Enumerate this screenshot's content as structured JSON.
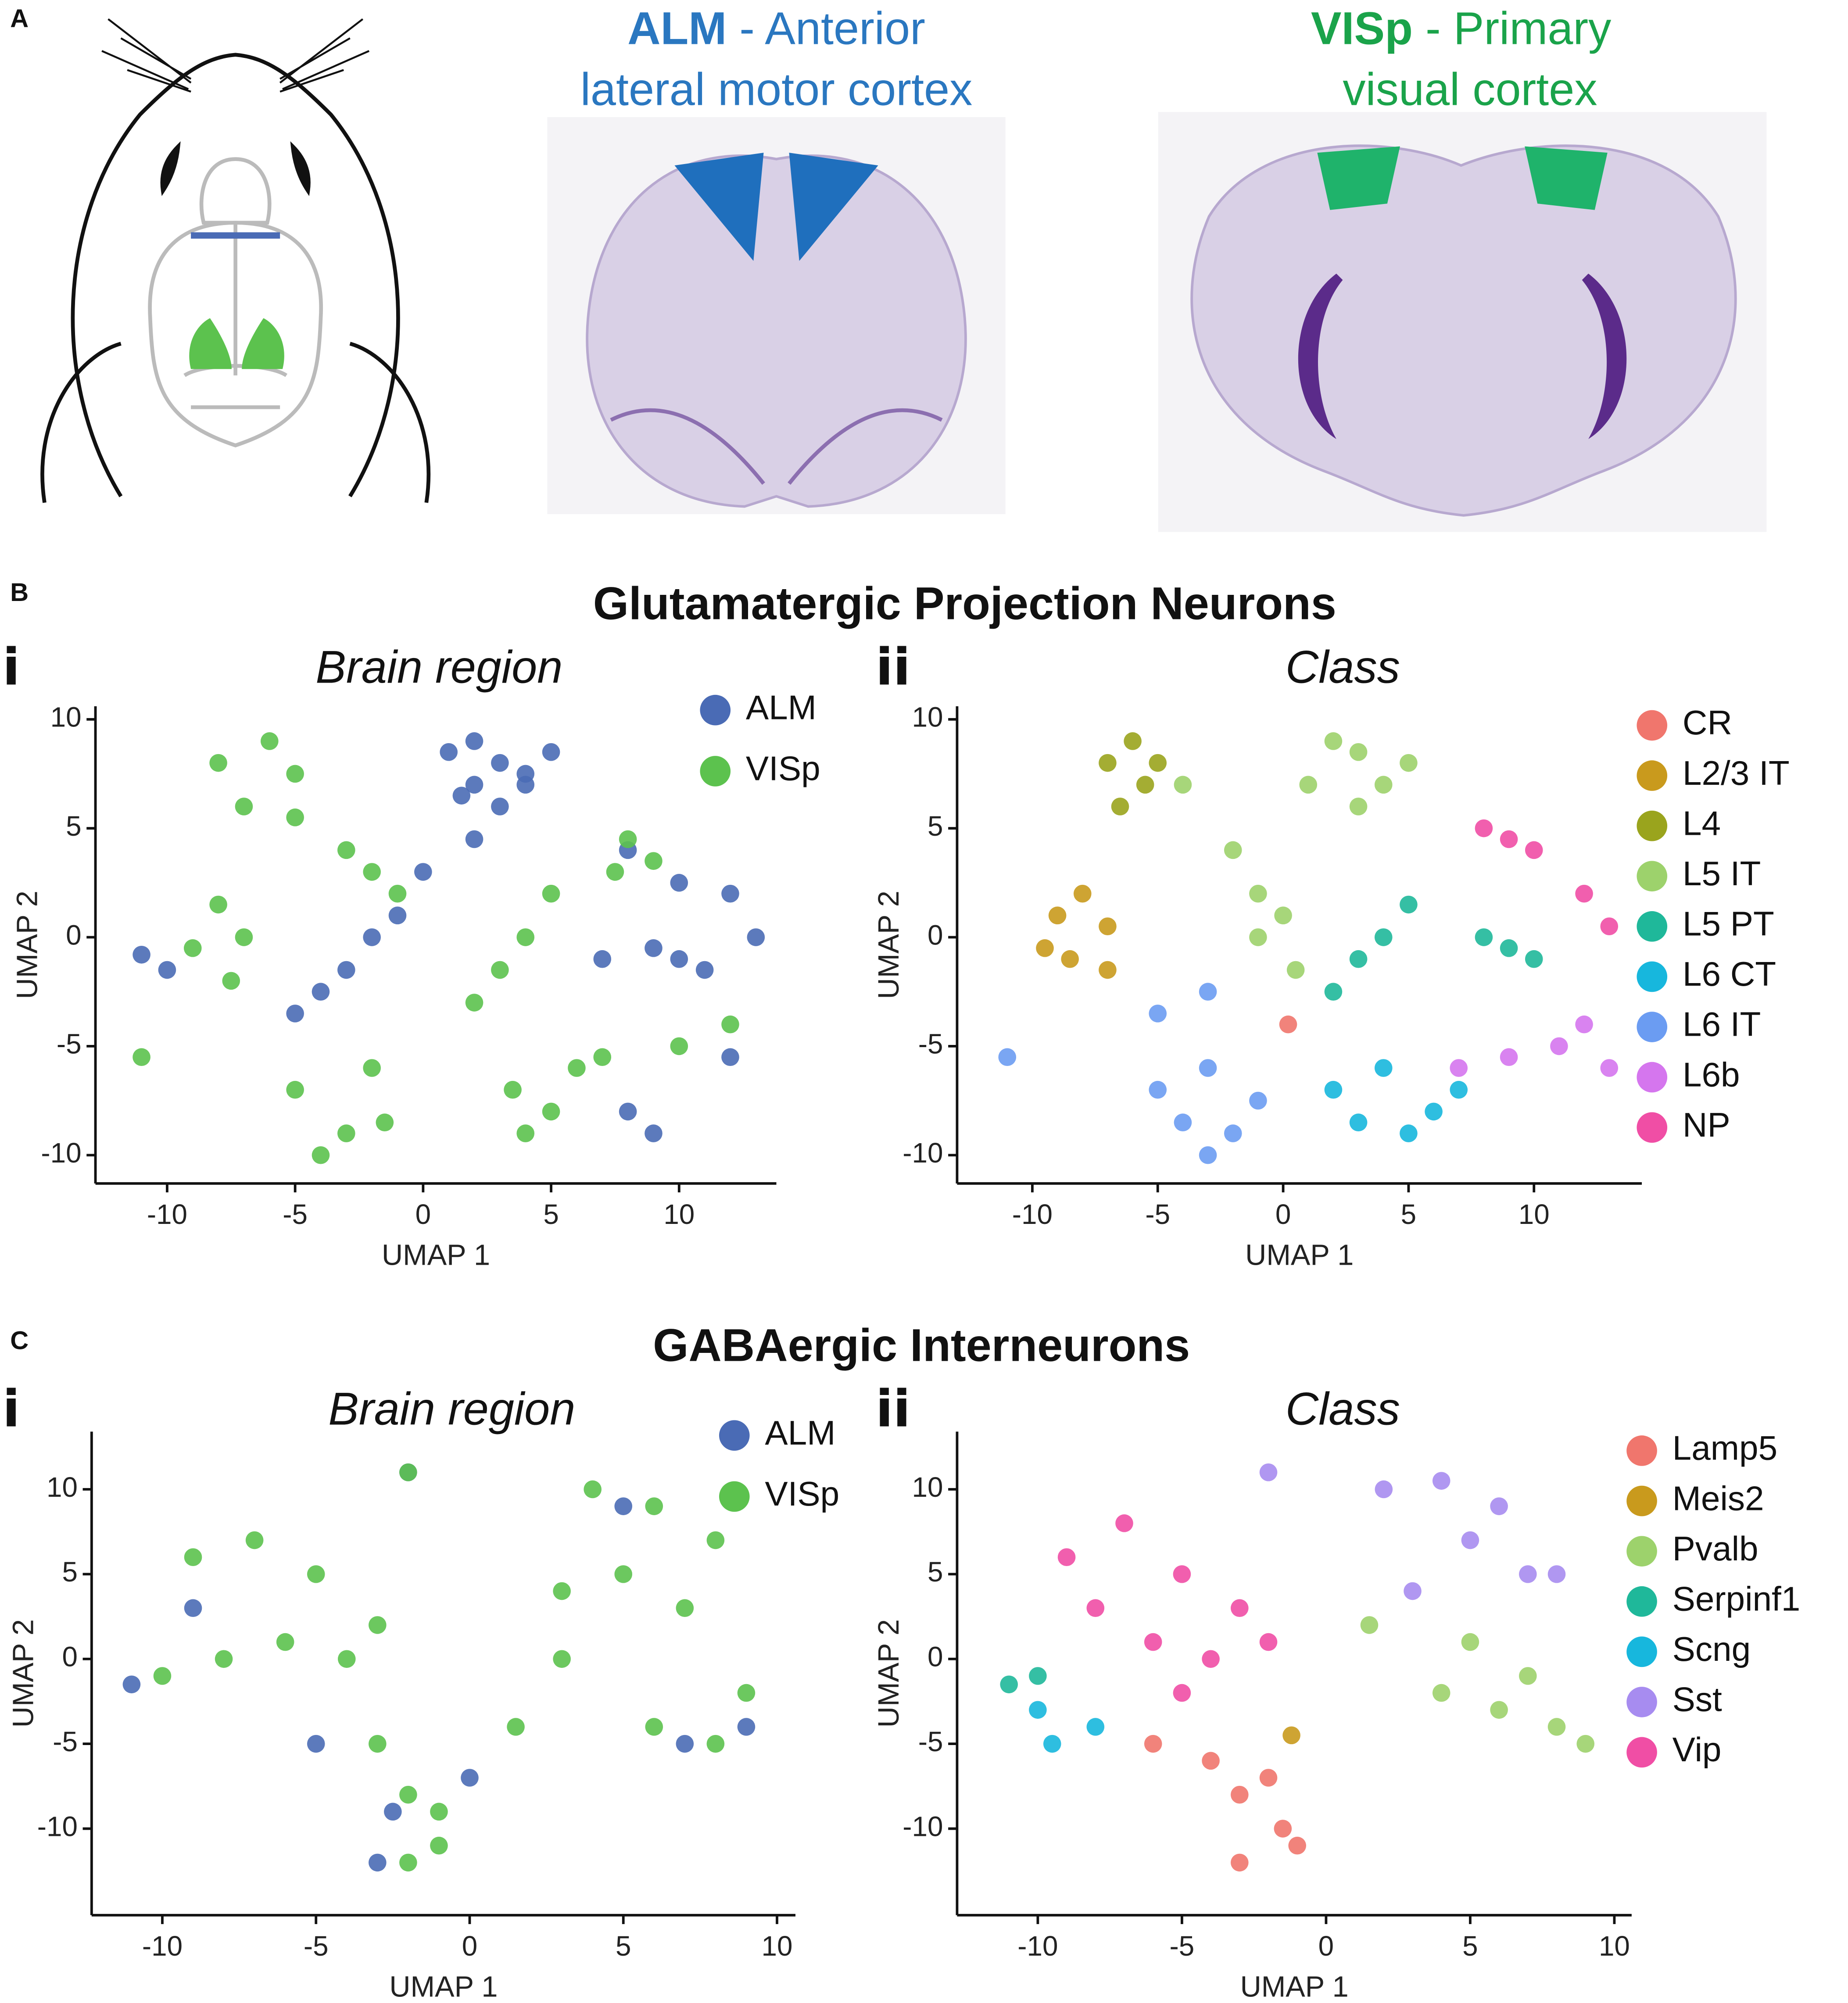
{
  "panel_labels": [
    "A",
    "B",
    "C"
  ],
  "panel_a": {
    "alm": {
      "bold": "ALM",
      "rest": " - Anterior",
      "line2": "lateral motor cortex"
    },
    "visp": {
      "bold": "VISp",
      "rest": " - Primary",
      "line2": "visual cortex"
    }
  },
  "sections": [
    {
      "title": "Glutamatergic Projection Neurons",
      "subpanels": [
        "i",
        "ii"
      ]
    },
    {
      "title": "GABAergic Interneurons",
      "subpanels": [
        "i",
        "ii"
      ]
    }
  ],
  "chart_data": [
    {
      "type": "scatter",
      "title": "Brain region",
      "xlabel": "UMAP 1",
      "ylabel": "UMAP 2",
      "xlim": [
        -12.8,
        13.8
      ],
      "ylim": [
        -11.3,
        10.6
      ],
      "xticks": [
        -10,
        -5,
        0,
        5,
        10
      ],
      "yticks": [
        -10,
        -5,
        0,
        5,
        10
      ],
      "legend": "upper right",
      "series": [
        {
          "name": "ALM",
          "color": "#4a6bb5",
          "x": [
            1,
            2,
            3,
            4,
            5,
            2,
            3,
            4,
            1.5,
            0,
            -1,
            -2,
            -3,
            -4,
            -5,
            2,
            8,
            10,
            12,
            13,
            7,
            9,
            10,
            11,
            8,
            9,
            12,
            -11,
            -10
          ],
          "y": [
            8.5,
            9,
            8,
            7.5,
            8.5,
            7,
            6,
            7,
            6.5,
            3,
            1,
            0,
            -1.5,
            -2.5,
            -3.5,
            4.5,
            4,
            2.5,
            2,
            0,
            -1,
            -0.5,
            -1,
            -1.5,
            -8,
            -9,
            -5.5,
            -0.8,
            -1.5
          ]
        },
        {
          "name": "VISp",
          "color": "#5cc24e",
          "x": [
            -8,
            -6,
            -5,
            -7,
            -5,
            -3,
            -2,
            -1,
            -8,
            -7,
            -9,
            -7.5,
            -11,
            -5,
            -3,
            -2,
            -4,
            -1.5,
            2,
            3,
            4,
            5,
            3.5,
            4,
            6,
            7,
            5,
            8,
            7.5,
            9,
            10,
            12
          ],
          "y": [
            8,
            9,
            7.5,
            6,
            5.5,
            4,
            3,
            2,
            1.5,
            0,
            -0.5,
            -2,
            -5.5,
            -7,
            -9,
            -6,
            -10,
            -8.5,
            -3,
            -1.5,
            0,
            2,
            -7,
            -9,
            -6,
            -5.5,
            -8,
            4.5,
            3,
            3.5,
            -5,
            -4
          ]
        }
      ]
    },
    {
      "type": "scatter",
      "title": "Class",
      "xlabel": "UMAP 1",
      "ylabel": "UMAP 2",
      "xlim": [
        -13,
        14.3
      ],
      "ylim": [
        -11.3,
        10.6
      ],
      "xticks": [
        -10,
        -5,
        0,
        5,
        10
      ],
      "yticks": [
        -10,
        -5,
        0,
        5,
        10
      ],
      "legend": "outside right",
      "series": [
        {
          "name": "CR",
          "color": "#f0766d",
          "x": [
            0.2
          ],
          "y": [
            -4
          ]
        },
        {
          "name": "L2/3 IT",
          "color": "#c99a1d",
          "x": [
            -9,
            -8,
            -7,
            -8.5,
            -7,
            -9.5
          ],
          "y": [
            1,
            2,
            0.5,
            -1,
            -1.5,
            -0.5
          ]
        },
        {
          "name": "L4",
          "color": "#9aa41d",
          "x": [
            -7,
            -6,
            -5,
            -6.5,
            -5.5
          ],
          "y": [
            8,
            9,
            8,
            6,
            7
          ]
        },
        {
          "name": "L5 IT",
          "color": "#9dd26c",
          "x": [
            -4,
            -2,
            -1,
            0,
            2,
            3,
            4,
            5,
            3,
            1,
            -1,
            0.5
          ],
          "y": [
            7,
            4,
            2,
            1,
            9,
            8.5,
            7,
            8,
            6,
            7,
            0,
            -1.5
          ]
        },
        {
          "name": "L5 PT",
          "color": "#1fb89a",
          "x": [
            2,
            3,
            4,
            5,
            8,
            9,
            10
          ],
          "y": [
            -2.5,
            -1,
            0,
            1.5,
            0,
            -0.5,
            -1
          ]
        },
        {
          "name": "L6 CT",
          "color": "#17b7dd",
          "x": [
            2,
            3,
            4,
            5,
            6,
            7
          ],
          "y": [
            -7,
            -8.5,
            -6,
            -9,
            -8,
            -7
          ]
        },
        {
          "name": "L6 IT",
          "color": "#6b9cf2",
          "x": [
            -5,
            -4,
            -3,
            -2,
            -1,
            -3,
            -11,
            -5,
            -3
          ],
          "y": [
            -7,
            -8.5,
            -6,
            -9,
            -7.5,
            -10,
            -5.5,
            -3.5,
            -2.5
          ]
        },
        {
          "name": "L6b",
          "color": "#d576ee",
          "x": [
            7,
            9,
            11,
            12,
            13
          ],
          "y": [
            -6,
            -5.5,
            -5,
            -4,
            -6
          ]
        },
        {
          "name": "NP",
          "color": "#f04ea5",
          "x": [
            8,
            9,
            10,
            12,
            13
          ],
          "y": [
            5,
            4.5,
            4,
            2,
            0.5
          ]
        }
      ]
    },
    {
      "type": "scatter",
      "title": "Brain region",
      "xlabel": "UMAP 1",
      "ylabel": "UMAP 2",
      "xlim": [
        -12.3,
        10.6
      ],
      "ylim": [
        -15.1,
        13.4
      ],
      "xticks": [
        -10,
        -5,
        0,
        5,
        10
      ],
      "yticks": [
        -10,
        -5,
        0,
        5,
        10
      ],
      "legend": "upper right",
      "series": [
        {
          "name": "ALM",
          "color": "#4a6bb5",
          "x": [
            -11,
            -9,
            -3,
            -2,
            9,
            7,
            5,
            -2.5,
            0,
            -5
          ],
          "y": [
            -1.5,
            3,
            -12,
            11,
            -4,
            -5,
            9,
            -9,
            -7,
            -5
          ]
        },
        {
          "name": "VISp",
          "color": "#5cc24e",
          "x": [
            -9,
            -7,
            -5,
            -3,
            -10,
            -8,
            -6,
            -4,
            -3,
            -2,
            -1,
            -2,
            -2,
            4,
            6,
            8,
            3,
            5,
            7,
            9,
            6,
            8,
            3,
            -1,
            1.5
          ],
          "y": [
            6,
            7,
            5,
            2,
            -1,
            0,
            1,
            0,
            -5,
            -8,
            -9,
            -12,
            11,
            10,
            9,
            7,
            4,
            5,
            3,
            -2,
            -4,
            -5,
            0,
            -11,
            -4
          ]
        }
      ]
    },
    {
      "type": "scatter",
      "title": "Class",
      "xlabel": "UMAP 1",
      "ylabel": "UMAP 2",
      "xlim": [
        -12.8,
        10.6
      ],
      "ylim": [
        -15.1,
        13.4
      ],
      "xticks": [
        -10,
        -5,
        0,
        5,
        10
      ],
      "yticks": [
        -10,
        -5,
        0,
        5,
        10
      ],
      "legend": "outside right",
      "series": [
        {
          "name": "Lamp5",
          "color": "#f0766d",
          "x": [
            -6,
            -4,
            -3,
            -2,
            -1.5,
            -3,
            -1
          ],
          "y": [
            -5,
            -6,
            -8,
            -7,
            -10,
            -12,
            -11
          ]
        },
        {
          "name": "Meis2",
          "color": "#c99a1d",
          "x": [
            -1.2
          ],
          "y": [
            -4.5
          ]
        },
        {
          "name": "Pvalb",
          "color": "#9dd26c",
          "x": [
            4,
            6,
            8,
            9,
            7,
            5,
            1.5
          ],
          "y": [
            -2,
            -3,
            -4,
            -5,
            -1,
            1,
            2
          ]
        },
        {
          "name": "Serpinf1",
          "color": "#1fb89a",
          "x": [
            -11,
            -10
          ],
          "y": [
            -1.5,
            -1
          ]
        },
        {
          "name": "Scng",
          "color": "#17b7dd",
          "x": [
            -10,
            -9.5,
            -8
          ],
          "y": [
            -3,
            -5,
            -4
          ]
        },
        {
          "name": "Sst",
          "color": "#a78cf0",
          "x": [
            2,
            4,
            6,
            5,
            7,
            -2,
            8,
            3
          ],
          "y": [
            10,
            10.5,
            9,
            7,
            5,
            11,
            5,
            4
          ]
        },
        {
          "name": "Vip",
          "color": "#f04ea5",
          "x": [
            -9,
            -7,
            -5,
            -3,
            -8,
            -6,
            -4,
            -2,
            -5
          ],
          "y": [
            6,
            8,
            5,
            3,
            3,
            1,
            0,
            1,
            -2
          ]
        }
      ]
    }
  ]
}
